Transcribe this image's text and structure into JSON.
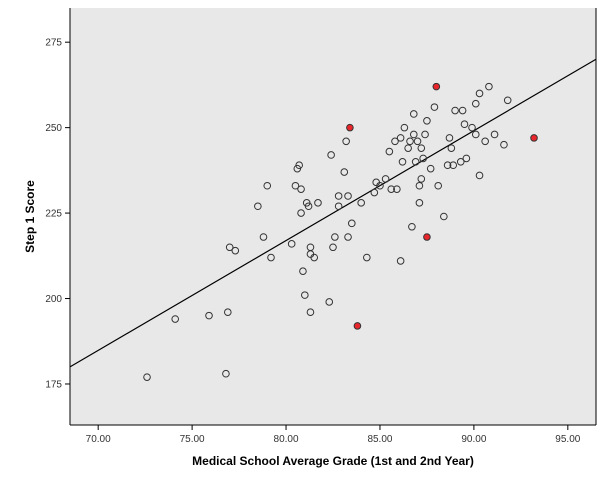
{
  "chart_data": {
    "type": "scatter",
    "title": "",
    "xlabel": "Medical School Average Grade (1st and 2nd Year)",
    "ylabel": "Step 1 Score",
    "xlim": [
      68.5,
      96.5
    ],
    "ylim": [
      163,
      285
    ],
    "x_ticks": [
      70,
      75,
      80,
      85,
      90,
      95
    ],
    "x_tick_labels": [
      "70.00",
      "75.00",
      "80.00",
      "85.00",
      "90.00",
      "95.00"
    ],
    "y_ticks": [
      175,
      200,
      225,
      250,
      275
    ],
    "y_tick_labels": [
      "175",
      "200",
      "225",
      "250",
      "275"
    ],
    "grid": false,
    "background_color": "#e8e8e8",
    "marker_color": "#333333",
    "highlight_color": "#e8262c",
    "fit_line": {
      "x": [
        68.5,
        96.5
      ],
      "y": [
        180,
        270
      ]
    },
    "points": [
      {
        "x": 72.6,
        "y": 177
      },
      {
        "x": 74.1,
        "y": 194
      },
      {
        "x": 75.9,
        "y": 195
      },
      {
        "x": 76.8,
        "y": 178
      },
      {
        "x": 76.9,
        "y": 196
      },
      {
        "x": 77.0,
        "y": 215
      },
      {
        "x": 77.3,
        "y": 214
      },
      {
        "x": 78.5,
        "y": 227
      },
      {
        "x": 78.8,
        "y": 218
      },
      {
        "x": 79.0,
        "y": 233
      },
      {
        "x": 79.2,
        "y": 212
      },
      {
        "x": 80.3,
        "y": 216
      },
      {
        "x": 80.5,
        "y": 233
      },
      {
        "x": 80.6,
        "y": 238
      },
      {
        "x": 80.7,
        "y": 239
      },
      {
        "x": 80.8,
        "y": 232
      },
      {
        "x": 80.8,
        "y": 225
      },
      {
        "x": 80.9,
        "y": 208
      },
      {
        "x": 81.0,
        "y": 201
      },
      {
        "x": 81.1,
        "y": 228
      },
      {
        "x": 81.2,
        "y": 227
      },
      {
        "x": 81.3,
        "y": 215
      },
      {
        "x": 81.3,
        "y": 213
      },
      {
        "x": 81.3,
        "y": 196
      },
      {
        "x": 81.5,
        "y": 212
      },
      {
        "x": 81.7,
        "y": 228
      },
      {
        "x": 82.3,
        "y": 199
      },
      {
        "x": 82.4,
        "y": 242
      },
      {
        "x": 82.5,
        "y": 215
      },
      {
        "x": 82.6,
        "y": 218
      },
      {
        "x": 82.8,
        "y": 227
      },
      {
        "x": 82.8,
        "y": 230
      },
      {
        "x": 83.1,
        "y": 237
      },
      {
        "x": 83.2,
        "y": 246
      },
      {
        "x": 83.3,
        "y": 230
      },
      {
        "x": 83.3,
        "y": 218
      },
      {
        "x": 83.4,
        "y": 250,
        "highlight": true
      },
      {
        "x": 83.5,
        "y": 222
      },
      {
        "x": 83.8,
        "y": 192,
        "highlight": true
      },
      {
        "x": 84.0,
        "y": 228
      },
      {
        "x": 84.3,
        "y": 212
      },
      {
        "x": 84.7,
        "y": 231
      },
      {
        "x": 84.8,
        "y": 234
      },
      {
        "x": 85.0,
        "y": 233
      },
      {
        "x": 85.3,
        "y": 235
      },
      {
        "x": 85.5,
        "y": 243
      },
      {
        "x": 85.6,
        "y": 232
      },
      {
        "x": 85.8,
        "y": 246
      },
      {
        "x": 85.9,
        "y": 232
      },
      {
        "x": 86.1,
        "y": 247
      },
      {
        "x": 86.1,
        "y": 211
      },
      {
        "x": 86.2,
        "y": 240
      },
      {
        "x": 86.3,
        "y": 250
      },
      {
        "x": 86.5,
        "y": 244
      },
      {
        "x": 86.6,
        "y": 246
      },
      {
        "x": 86.7,
        "y": 221
      },
      {
        "x": 86.8,
        "y": 248
      },
      {
        "x": 86.8,
        "y": 254
      },
      {
        "x": 86.9,
        "y": 240
      },
      {
        "x": 87.0,
        "y": 246
      },
      {
        "x": 87.1,
        "y": 228
      },
      {
        "x": 87.1,
        "y": 233
      },
      {
        "x": 87.2,
        "y": 235
      },
      {
        "x": 87.2,
        "y": 244
      },
      {
        "x": 87.3,
        "y": 241
      },
      {
        "x": 87.4,
        "y": 248
      },
      {
        "x": 87.5,
        "y": 252
      },
      {
        "x": 87.5,
        "y": 218,
        "highlight": true
      },
      {
        "x": 87.7,
        "y": 238
      },
      {
        "x": 87.9,
        "y": 256
      },
      {
        "x": 88.0,
        "y": 262,
        "highlight": true
      },
      {
        "x": 88.1,
        "y": 233
      },
      {
        "x": 88.4,
        "y": 224
      },
      {
        "x": 88.6,
        "y": 239
      },
      {
        "x": 88.7,
        "y": 247
      },
      {
        "x": 88.8,
        "y": 244
      },
      {
        "x": 88.9,
        "y": 239
      },
      {
        "x": 89.0,
        "y": 255
      },
      {
        "x": 89.3,
        "y": 240
      },
      {
        "x": 89.4,
        "y": 255
      },
      {
        "x": 89.5,
        "y": 251
      },
      {
        "x": 89.6,
        "y": 241
      },
      {
        "x": 89.9,
        "y": 250
      },
      {
        "x": 90.1,
        "y": 257
      },
      {
        "x": 90.1,
        "y": 248
      },
      {
        "x": 90.3,
        "y": 236
      },
      {
        "x": 90.3,
        "y": 260
      },
      {
        "x": 90.6,
        "y": 246
      },
      {
        "x": 90.8,
        "y": 262
      },
      {
        "x": 91.1,
        "y": 248
      },
      {
        "x": 91.6,
        "y": 245
      },
      {
        "x": 91.8,
        "y": 258
      },
      {
        "x": 93.2,
        "y": 247,
        "highlight": true
      }
    ]
  }
}
